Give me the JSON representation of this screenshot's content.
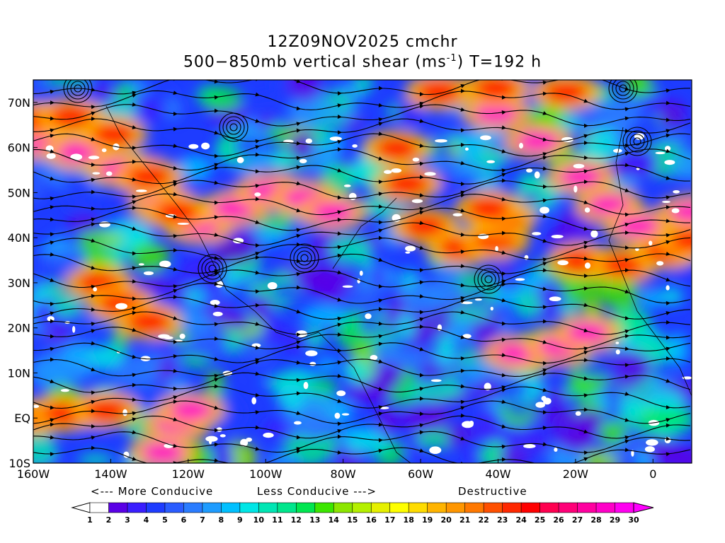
{
  "title": {
    "line1": "12Z09NOV2025 cmchr",
    "line2_prefix": "500−850mb vertical shear (ms",
    "line2_sup": "-1",
    "line2_suffix": ") T=192 h"
  },
  "map": {
    "lat_ticks": [
      "70N",
      "60N",
      "50N",
      "40N",
      "30N",
      "20N",
      "10N",
      "EQ",
      "10S"
    ],
    "lon_ticks": [
      "160W",
      "140W",
      "120W",
      "100W",
      "80W",
      "60W",
      "40W",
      "20W",
      "0"
    ],
    "lon_range": [
      -160,
      10
    ],
    "lat_range": [
      -10,
      75
    ]
  },
  "captions": {
    "more": "<--- More Conducive",
    "less": "Less Conducive --->",
    "destructive": "Destructive"
  },
  "colorbar": {
    "labels": [
      "1",
      "2",
      "3",
      "4",
      "5",
      "6",
      "7",
      "8",
      "9",
      "10",
      "11",
      "12",
      "13",
      "14",
      "15",
      "16",
      "17",
      "18",
      "19",
      "20",
      "21",
      "22",
      "23",
      "24",
      "25",
      "26",
      "27",
      "28",
      "29",
      "30"
    ],
    "colors": [
      "#ffffff",
      "#5a00e6",
      "#3a1eff",
      "#1e3cff",
      "#2a5cff",
      "#2a7cff",
      "#1e9cff",
      "#00c0ff",
      "#00e6e6",
      "#00e6b4",
      "#00e68c",
      "#00e650",
      "#3ce600",
      "#8ce600",
      "#b4f000",
      "#e6f000",
      "#ffff00",
      "#ffdc00",
      "#ffb400",
      "#ff9600",
      "#ff7800",
      "#ff5000",
      "#ff2800",
      "#ff0000",
      "#ff0050",
      "#ff0078",
      "#ff00a0",
      "#ff00c8",
      "#ff00f0"
    ]
  }
}
